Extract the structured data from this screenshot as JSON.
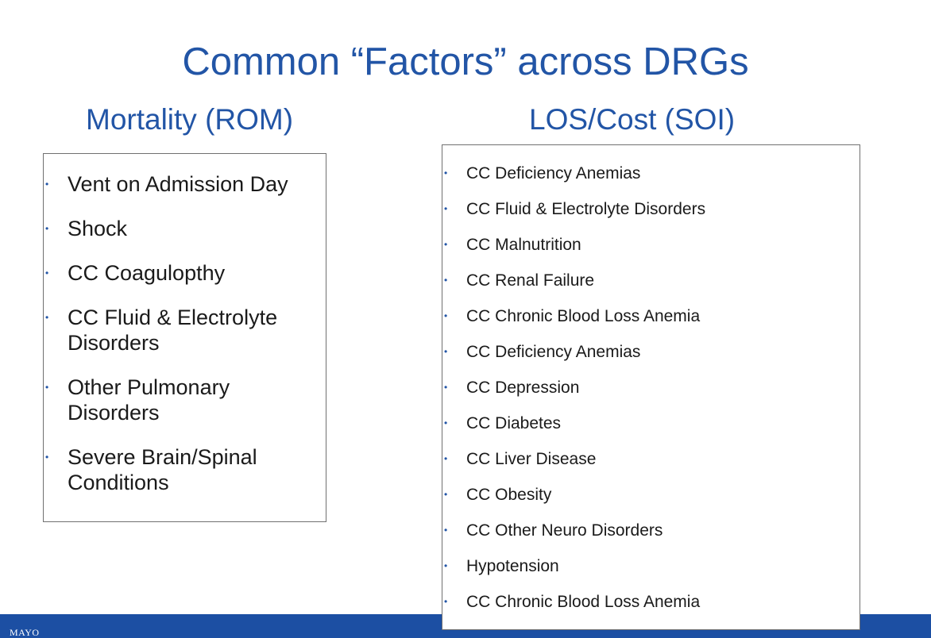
{
  "title": "Common “Factors” across DRGs",
  "left_column": {
    "heading": "Mortality (ROM)",
    "items": [
      "Vent on Admission Day",
      "Shock",
      "CC Coagulopthy",
      "CC Fluid & Electrolyte Disorders",
      "Other Pulmonary Disorders",
      "Severe Brain/Spinal Conditions"
    ]
  },
  "right_column": {
    "heading": "LOS/Cost (SOI)",
    "items": [
      "CC Deficiency Anemias",
      "CC Fluid & Electrolyte Disorders",
      "CC Malnutrition",
      "CC Renal Failure",
      "CC Chronic Blood Loss Anemia",
      "CC Deficiency Anemias",
      "CC Depression",
      "CC Diabetes",
      "CC Liver Disease",
      "CC Obesity",
      "CC Other Neuro Disorders",
      "Hypotension",
      "CC Chronic Blood Loss Anemia"
    ]
  },
  "footer": {
    "logo_text": "MAYO"
  },
  "colors": {
    "title": "#2255a6",
    "footer_bar": "#1c4fa3",
    "bullet": "#2255a6"
  }
}
